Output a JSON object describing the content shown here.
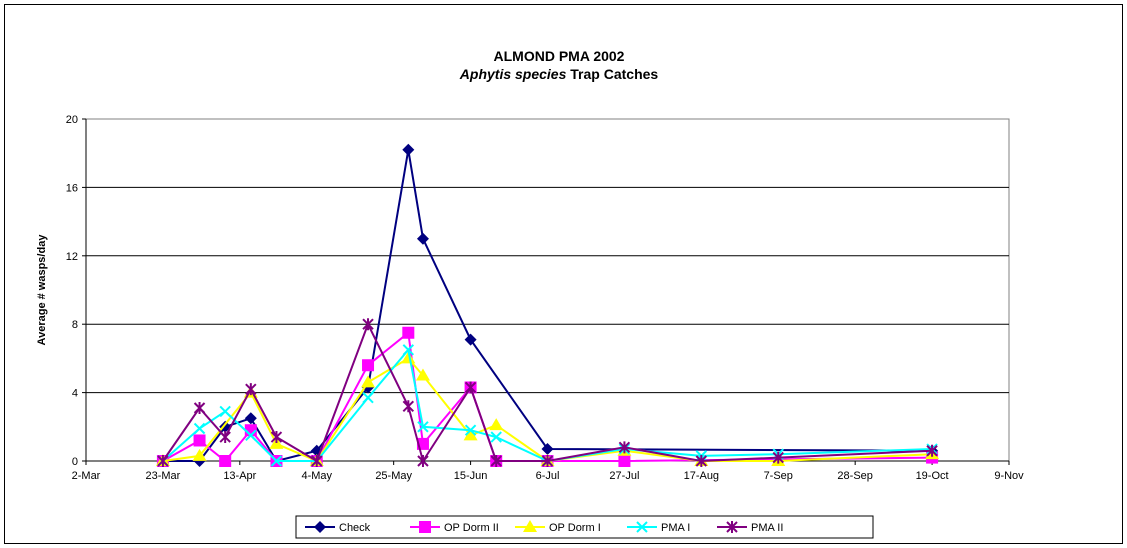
{
  "chart_data": {
    "type": "line",
    "title": "ALMOND PMA 2002",
    "subtitle_italic": "Aphytis species",
    "subtitle_rest": " Trap Catches",
    "ylabel": "Average # wasps/day",
    "xlabel": "",
    "x_ticks": [
      "2-Mar",
      "23-Mar",
      "13-Apr",
      "4-May",
      "25-May",
      "15-Jun",
      "6-Jul",
      "27-Jul",
      "17-Aug",
      "7-Sep",
      "28-Sep",
      "19-Oct",
      "9-Nov"
    ],
    "y_ticks": [
      "0",
      "4",
      "8",
      "12",
      "16",
      "20"
    ],
    "ylim": [
      0,
      20
    ],
    "xlim": [
      "2002-03-02",
      "2002-11-09"
    ],
    "grid": "horizontal",
    "legend_position": "bottom",
    "series": [
      {
        "name": "Check",
        "color": "#000080",
        "marker": "diamond",
        "x": [
          "2002-03-23",
          "2002-04-02",
          "2002-04-09",
          "2002-04-16",
          "2002-04-23",
          "2002-05-04",
          "2002-05-18",
          "2002-05-29",
          "2002-06-02",
          "2002-06-15",
          "2002-07-06",
          "2002-10-19"
        ],
        "y": [
          0,
          0,
          2.0,
          2.5,
          0,
          0.6,
          4.3,
          18.2,
          13.0,
          7.1,
          0.7,
          0.6
        ]
      },
      {
        "name": "OP Dorm II",
        "color": "#FF00FF",
        "marker": "square",
        "x": [
          "2002-03-23",
          "2002-04-02",
          "2002-04-09",
          "2002-04-16",
          "2002-04-23",
          "2002-05-04",
          "2002-05-18",
          "2002-05-29",
          "2002-06-02",
          "2002-06-15",
          "2002-06-22",
          "2002-07-06",
          "2002-07-27",
          "2002-10-19"
        ],
        "y": [
          0,
          1.2,
          0,
          1.8,
          0,
          0,
          5.6,
          7.5,
          1.0,
          4.3,
          0,
          0,
          0,
          0.2
        ]
      },
      {
        "name": "OP Dorm I",
        "color": "#FFFF00",
        "marker": "triangle",
        "x": [
          "2002-03-23",
          "2002-04-02",
          "2002-04-16",
          "2002-04-23",
          "2002-05-04",
          "2002-05-18",
          "2002-05-29",
          "2002-06-02",
          "2002-06-15",
          "2002-06-22",
          "2002-07-06",
          "2002-07-27",
          "2002-08-17",
          "2002-09-07",
          "2002-10-19"
        ],
        "y": [
          0,
          0.3,
          4.0,
          1.0,
          0,
          4.6,
          6.0,
          5.0,
          1.5,
          2.1,
          0,
          0.6,
          0,
          0,
          0.4
        ]
      },
      {
        "name": "PMA I",
        "color": "#00FFFF",
        "marker": "x",
        "x": [
          "2002-03-23",
          "2002-04-02",
          "2002-04-09",
          "2002-04-16",
          "2002-04-23",
          "2002-05-04",
          "2002-05-18",
          "2002-05-29",
          "2002-06-02",
          "2002-06-15",
          "2002-06-22",
          "2002-07-06",
          "2002-07-27",
          "2002-08-17",
          "2002-09-07",
          "2002-10-19"
        ],
        "y": [
          0,
          1.9,
          2.9,
          1.5,
          0,
          0,
          3.7,
          6.5,
          2.0,
          1.8,
          1.4,
          0,
          0.7,
          0.3,
          0.4,
          0.7
        ]
      },
      {
        "name": "PMA II",
        "color": "#800080",
        "marker": "asterisk",
        "x": [
          "2002-03-23",
          "2002-04-02",
          "2002-04-09",
          "2002-04-16",
          "2002-04-23",
          "2002-05-04",
          "2002-05-18",
          "2002-05-29",
          "2002-06-02",
          "2002-06-15",
          "2002-06-22",
          "2002-07-06",
          "2002-07-27",
          "2002-08-17",
          "2002-09-07",
          "2002-10-19"
        ],
        "y": [
          0,
          3.1,
          1.4,
          4.2,
          1.4,
          0,
          8.0,
          3.2,
          0,
          4.3,
          0,
          0,
          0.8,
          0,
          0.2,
          0.6
        ]
      }
    ]
  }
}
